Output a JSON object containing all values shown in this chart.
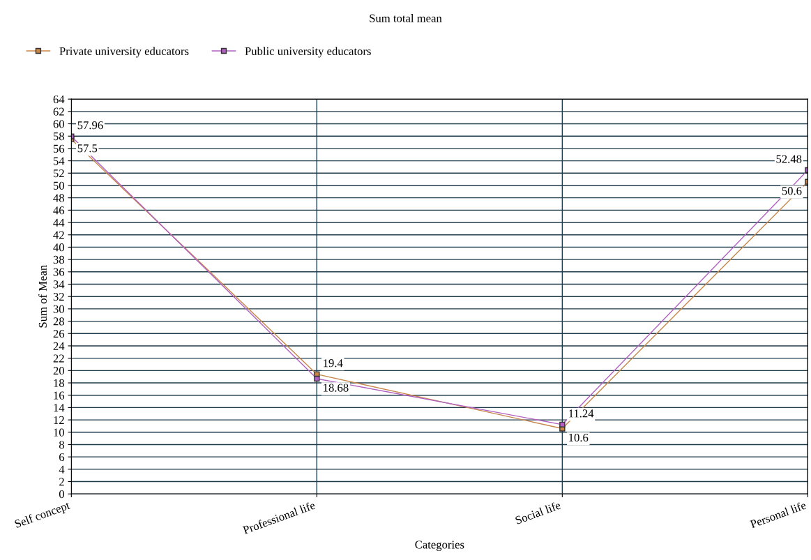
{
  "chart_data": {
    "type": "line",
    "title": "Sum total mean",
    "xlabel": "Categories",
    "ylabel": "Sum of Mean",
    "categories": [
      "Self concept",
      "Professional life",
      "Social life",
      "Personal life"
    ],
    "series": [
      {
        "name": "Private university educators",
        "color": "#c8864a",
        "values": [
          57.5,
          19.4,
          10.6,
          50.6
        ]
      },
      {
        "name": "Public university educators",
        "color": "#b060c0",
        "values": [
          57.96,
          18.68,
          11.24,
          52.48
        ]
      }
    ],
    "ylim": [
      0,
      64
    ],
    "yticks": [
      0,
      2,
      4,
      6,
      8,
      10,
      12,
      14,
      16,
      18,
      20,
      22,
      24,
      26,
      28,
      30,
      32,
      34,
      36,
      38,
      40,
      42,
      44,
      46,
      48,
      50,
      52,
      54,
      56,
      58,
      60,
      62,
      64
    ],
    "grid": true,
    "legend": "top left",
    "marker": "square",
    "line_style": "solid",
    "data_labels": true
  }
}
